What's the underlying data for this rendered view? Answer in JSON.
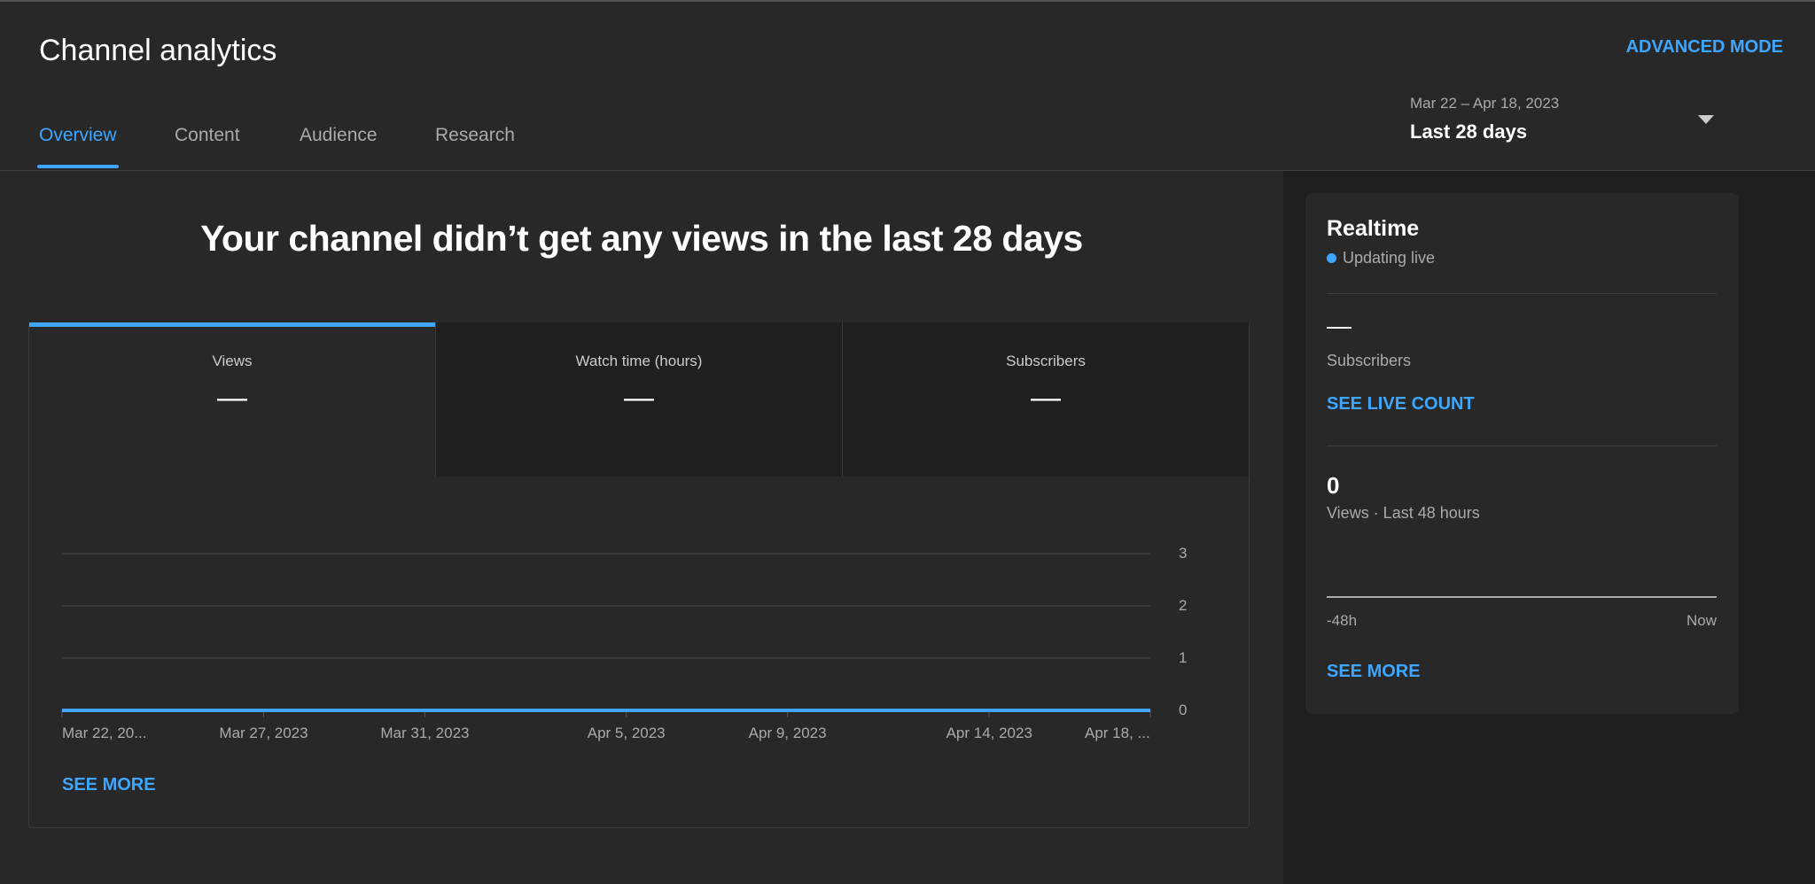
{
  "header": {
    "title": "Channel analytics",
    "advanced_mode": "ADVANCED MODE",
    "tabs": [
      {
        "label": "Overview",
        "active": true
      },
      {
        "label": "Content"
      },
      {
        "label": "Audience"
      },
      {
        "label": "Research"
      }
    ],
    "date_range": "Mar 22 – Apr 18, 2023",
    "date_label": "Last 28 days"
  },
  "main": {
    "headline": "Your channel didn’t get any views in the last 28 days",
    "metrics": [
      {
        "label": "Views",
        "value": "—"
      },
      {
        "label": "Watch time (hours)",
        "value": "—"
      },
      {
        "label": "Subscribers",
        "value": "—"
      }
    ],
    "see_more": "SEE MORE"
  },
  "chart_data": {
    "type": "line",
    "series_color": "#3ea6ff",
    "ylim": [
      0,
      3
    ],
    "yticks": [
      "0",
      "1",
      "2",
      "3"
    ],
    "x": [
      "2023-03-22",
      "2023-04-18"
    ],
    "values": [
      0,
      0
    ],
    "xticks": [
      {
        "date": "2023-03-22",
        "label": "Mar 22, 20..."
      },
      {
        "date": "2023-03-27",
        "label": "Mar 27, 2023"
      },
      {
        "date": "2023-03-31",
        "label": "Mar 31, 2023"
      },
      {
        "date": "2023-04-05",
        "label": "Apr 5, 2023"
      },
      {
        "date": "2023-04-09",
        "label": "Apr 9, 2023"
      },
      {
        "date": "2023-04-14",
        "label": "Apr 14, 2023"
      },
      {
        "date": "2023-04-18",
        "label": "Apr 18, ..."
      }
    ],
    "grid": true
  },
  "realtime": {
    "title": "Realtime",
    "status": "Updating live",
    "status_color": "#3ea6ff",
    "subscribers_value": "—",
    "subscribers_label": "Subscribers",
    "see_live_count": "SEE LIVE COUNT",
    "views_value": "0",
    "views_label": "Views · Last 48 hours",
    "axis_start": "-48h",
    "axis_end": "Now",
    "see_more": "SEE MORE"
  }
}
